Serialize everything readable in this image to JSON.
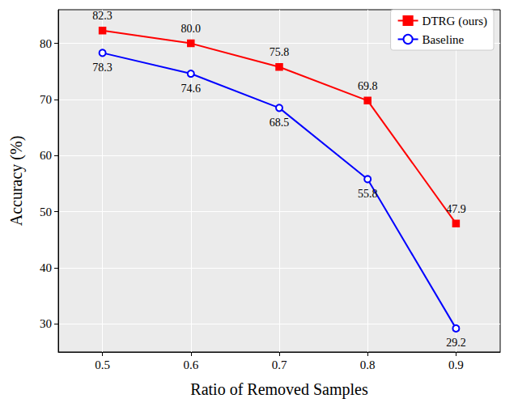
{
  "chart_data": {
    "type": "line",
    "x_label": "Ratio of Removed Samples",
    "y_label": "Accuracy (%)",
    "x": [
      0.5,
      0.6,
      0.7,
      0.8,
      0.9
    ],
    "series": [
      {
        "name": "DTRG (ours)",
        "color": "#ff0000",
        "marker": "square",
        "values": [
          82.3,
          80.0,
          75.8,
          69.8,
          47.9
        ],
        "value_labels": [
          "82.3",
          "80.0",
          "75.8",
          "69.8",
          "47.9"
        ]
      },
      {
        "name": "Baseline",
        "color": "#0000ff",
        "marker": "circle",
        "values": [
          78.3,
          74.6,
          68.5,
          55.8,
          29.2
        ]
      }
    ],
    "xlim": [
      0.45,
      0.95
    ],
    "xticks": [
      0.5,
      0.6,
      0.7,
      0.8,
      0.9
    ],
    "ylim": [
      25,
      86
    ],
    "yticks": [
      30,
      40,
      50,
      60,
      70,
      80
    ],
    "grid": true,
    "legend": "upper right",
    "data_labels": true
  }
}
